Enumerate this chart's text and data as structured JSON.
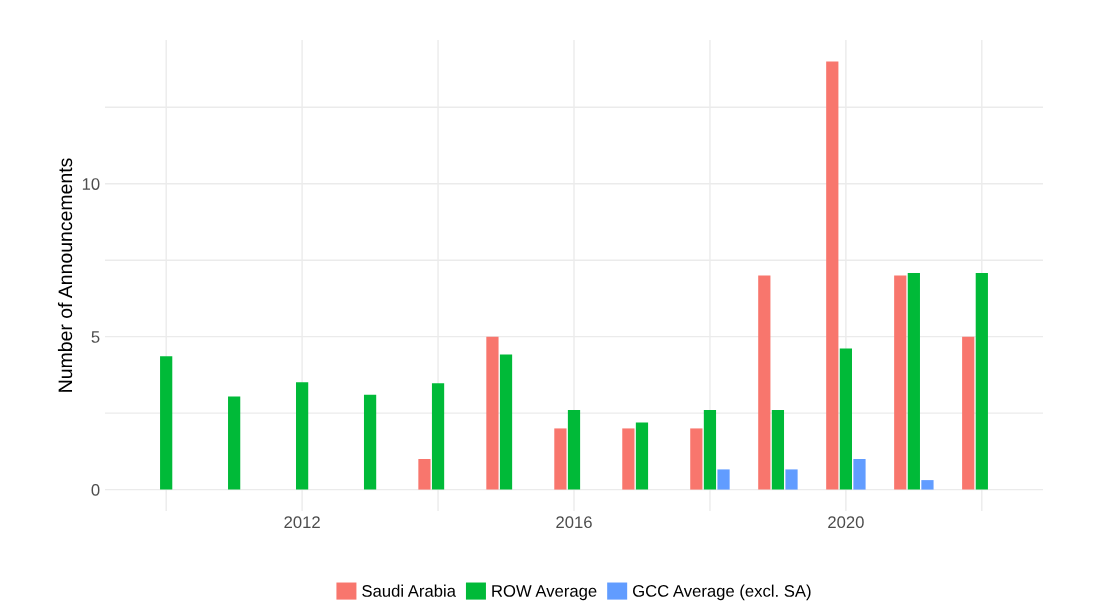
{
  "chart_data": {
    "type": "bar",
    "ylabel": "Number of Announcements",
    "x": [
      2010,
      2011,
      2012,
      2013,
      2014,
      2015,
      2016,
      2017,
      2018,
      2019,
      2020,
      2021,
      2022
    ],
    "series": [
      {
        "name": "Saudi Arabia",
        "color": "#f8766d",
        "values": [
          null,
          null,
          null,
          null,
          1,
          5,
          2,
          2,
          2,
          7,
          14,
          7,
          5
        ]
      },
      {
        "name": "ROW Average",
        "color": "#00ba38",
        "values": [
          4.36,
          3.04,
          3.51,
          3.1,
          3.48,
          4.42,
          2.6,
          2.19,
          2.6,
          2.6,
          4.61,
          7.08,
          7.08
        ]
      },
      {
        "name": "GCC Average (excl. SA)",
        "color": "#619cff",
        "values": [
          null,
          null,
          null,
          null,
          null,
          null,
          null,
          null,
          0.66,
          0.66,
          1,
          0.31,
          null
        ]
      }
    ],
    "xlim": [
      2009.1,
      2022.9
    ],
    "xticks": [
      {
        "value": 2010,
        "label": null
      },
      2012,
      {
        "value": 2014,
        "label": null
      },
      2016,
      {
        "value": 2018,
        "label": null
      },
      2020,
      {
        "value": 2022,
        "label": null
      }
    ],
    "ylim": [
      -0.7,
      14.7
    ],
    "yticks": [
      0,
      {
        "value": 2.5,
        "label": null
      },
      5,
      {
        "value": 7.5,
        "label": null
      },
      10,
      {
        "value": 12.5,
        "label": null
      }
    ],
    "grid": true,
    "legend": "bottom"
  }
}
